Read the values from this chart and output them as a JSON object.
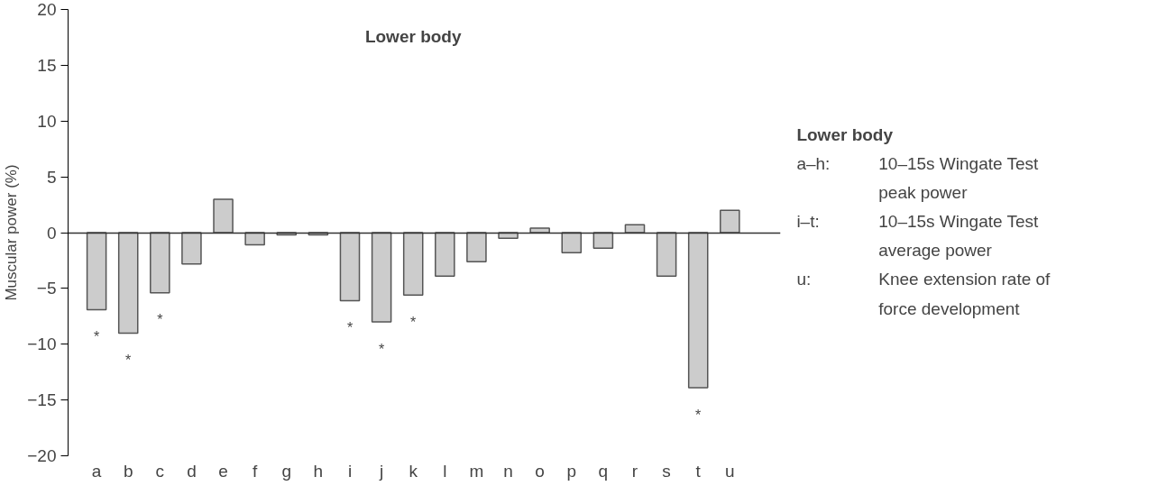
{
  "chart_data": {
    "type": "bar",
    "title": "Lower body",
    "ylabel": "Muscular power (%)",
    "categories": [
      "a",
      "b",
      "c",
      "d",
      "e",
      "f",
      "g",
      "h",
      "i",
      "j",
      "k",
      "l",
      "m",
      "n",
      "o",
      "p",
      "q",
      "r",
      "s",
      "t",
      "u"
    ],
    "values": [
      -6.9,
      -9.0,
      -5.4,
      -2.8,
      3.0,
      -1.1,
      -0.2,
      -0.2,
      -6.1,
      -8.0,
      -5.6,
      -3.9,
      -2.6,
      -0.5,
      0.4,
      -1.8,
      -1.4,
      0.7,
      -3.9,
      -13.9,
      2.0
    ],
    "color": "#cccccc",
    "ylim": [
      -20,
      20
    ],
    "yticks": [
      {
        "value": -20,
        "label": "−20"
      },
      {
        "value": -15,
        "label": "−15"
      },
      {
        "value": -10,
        "label": "−10"
      },
      {
        "value": -5,
        "label": "−5"
      },
      0,
      5,
      10,
      15,
      20
    ],
    "annotations": [
      {
        "text": "*",
        "x": "a",
        "y": -6.9
      },
      {
        "text": "*",
        "x": "b",
        "y": -9.0
      },
      {
        "text": "*",
        "x": "c",
        "y": -5.4
      },
      {
        "text": "*",
        "x": "i",
        "y": -6.1
      },
      {
        "text": "*",
        "x": "j",
        "y": -8.0
      },
      {
        "text": "*",
        "x": "k",
        "y": -5.6
      },
      {
        "text": "*",
        "x": "t",
        "y": -13.9
      },
      "Lower body",
      "a–h: 10–15s Wingate Test peak power",
      "i–t: 10–15s Wingate Test average power",
      "u: Knee extension rate of force development"
    ]
  }
}
